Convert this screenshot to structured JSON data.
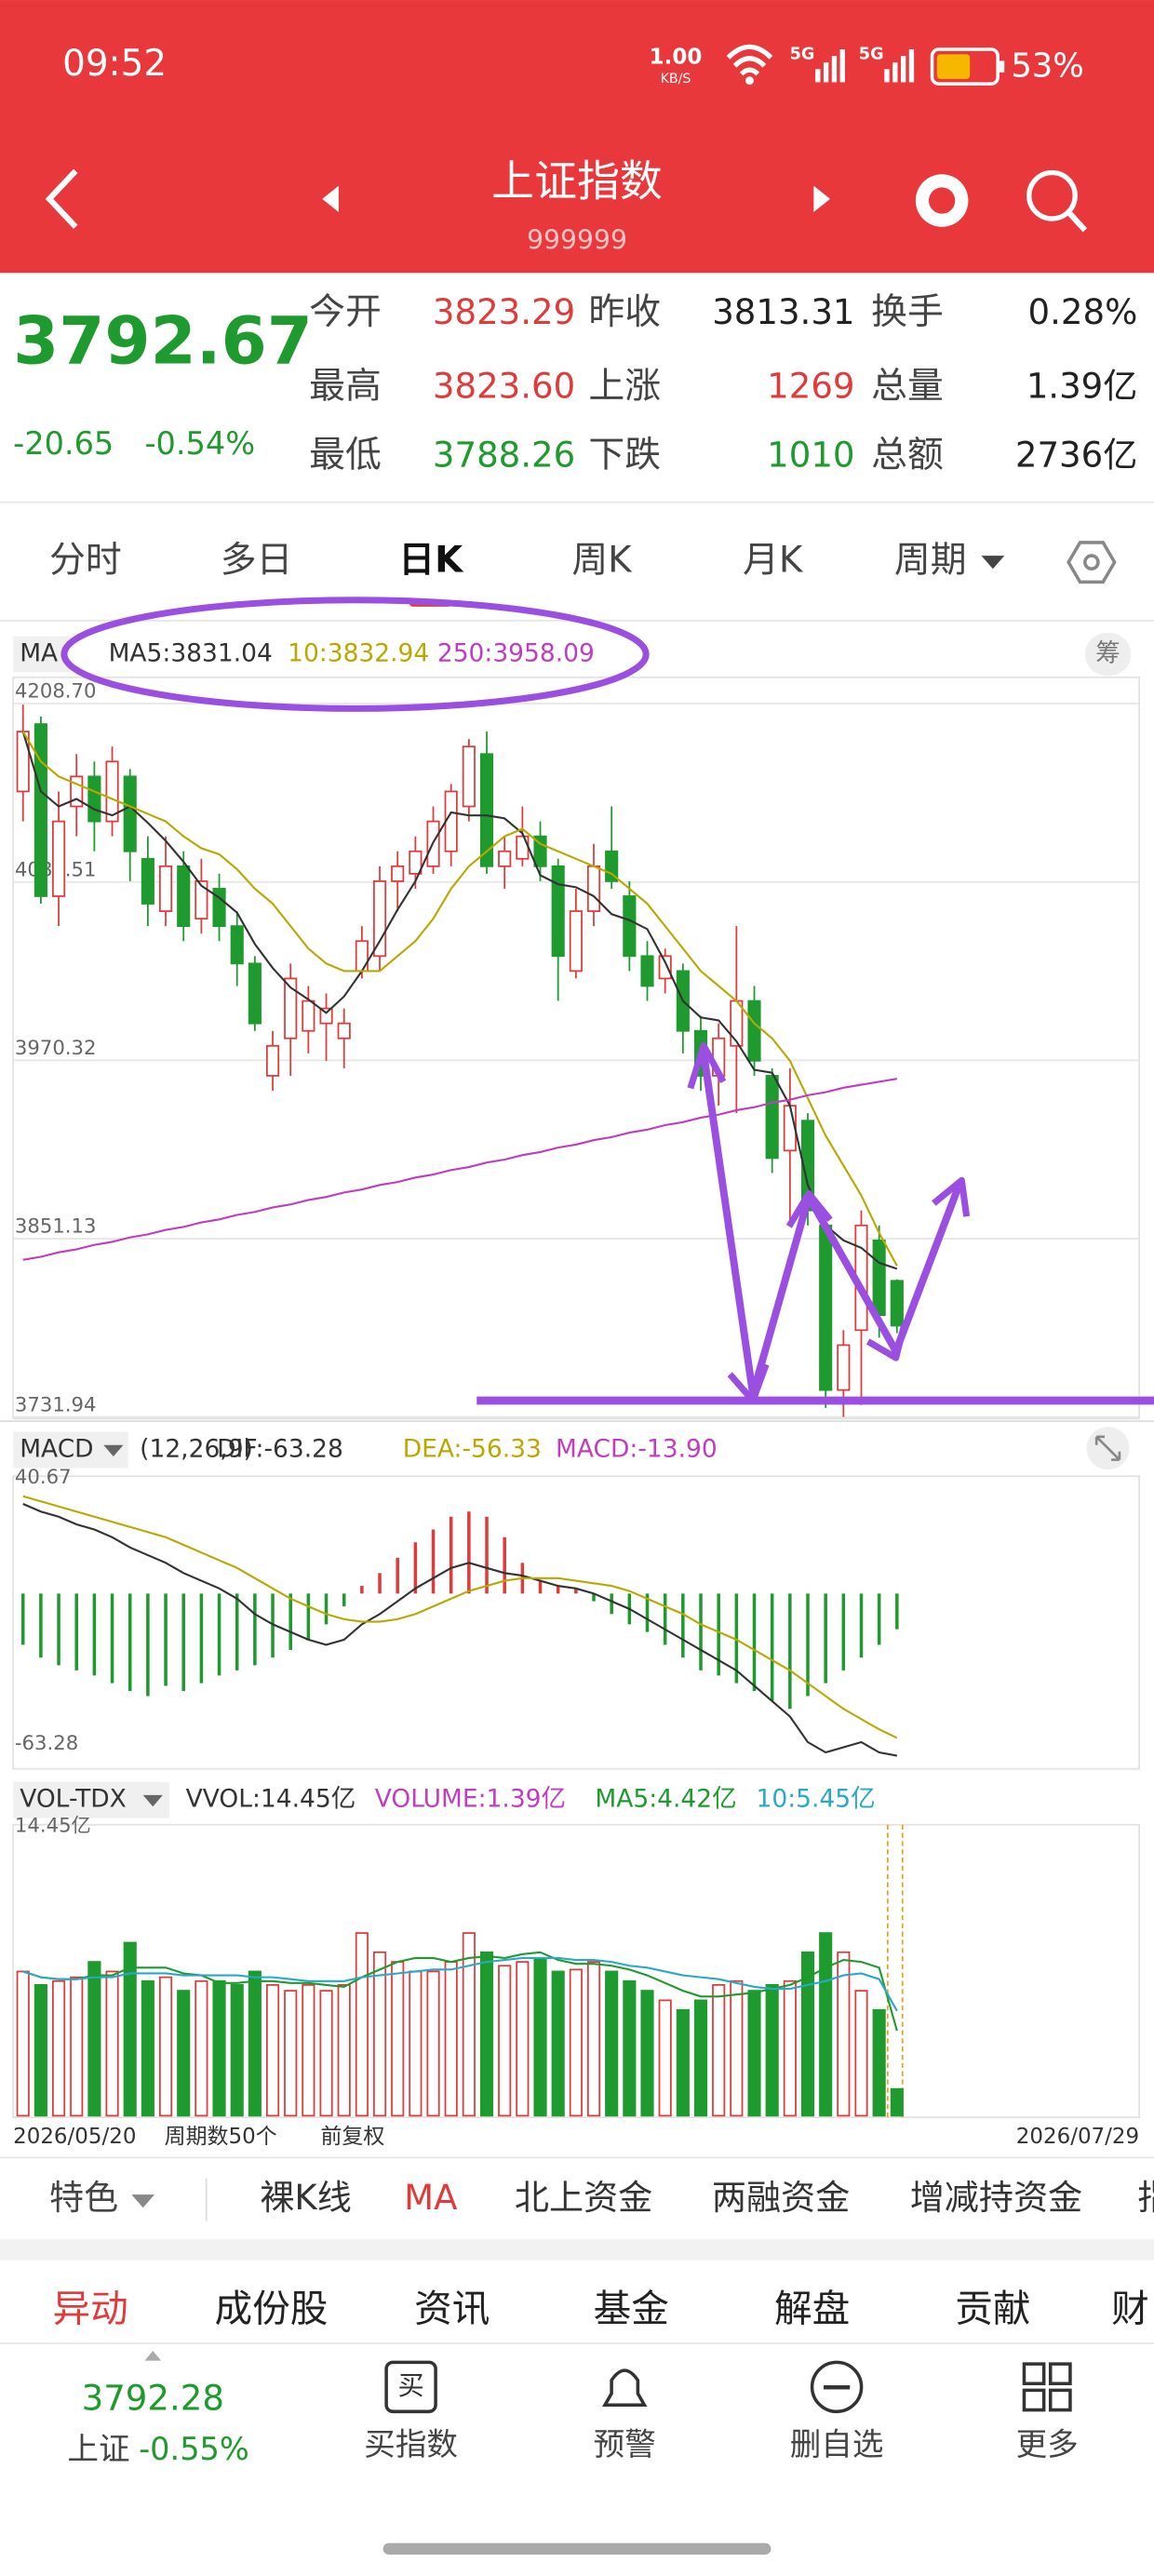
{
  "status_bar": {
    "time": "09:52",
    "net_speed": "1.00",
    "net_unit": "KB/S",
    "network_1": "5G",
    "network_2": "5G",
    "battery": "53%"
  },
  "header": {
    "title": "上证指数",
    "code": "999999"
  },
  "quote": {
    "price": "3792.67",
    "change": "-20.65",
    "change_pct": "-0.54%",
    "rows": [
      [
        {
          "label": "今开",
          "value": "3823.29"
        },
        {
          "label": "昨收",
          "value": "3813.31"
        },
        {
          "label": "换手",
          "value": "0.28%"
        }
      ],
      [
        {
          "label": "最高",
          "value": "3823.60"
        },
        {
          "label": "上涨",
          "value": "1269"
        },
        {
          "label": "总量",
          "value": "1.39亿"
        }
      ],
      [
        {
          "label": "最低",
          "value": "3788.26"
        },
        {
          "label": "下跌",
          "value": "1010"
        },
        {
          "label": "总额",
          "value": "2736亿"
        }
      ]
    ]
  },
  "tabs": [
    "分时",
    "多日",
    "日K",
    "周K",
    "月K",
    "周期"
  ],
  "chart_data": [
    {
      "type": "candlestick",
      "indicator": "MA",
      "chip_button": "筹",
      "up_color": "#e03b3b",
      "down_color": "#1f9a2e",
      "grid": true,
      "ylim": [
        3731.94,
        4208.7
      ],
      "yticks": [
        {
          "value": 4208.7,
          "label": "4208.70"
        },
        {
          "value": 4089.51,
          "label": "4089.51"
        },
        {
          "value": 3970.32,
          "label": "3970.32"
        },
        {
          "value": 3851.13,
          "label": "3851.13"
        },
        {
          "value": 3731.94,
          "label": "3731.94"
        }
      ],
      "open": [
        4150,
        4195,
        4080,
        4140,
        4160,
        4130,
        4160,
        4105,
        4070,
        4100,
        4065,
        4085,
        4060,
        4035,
        3960,
        3985,
        3990,
        3995,
        3985,
        4030,
        4040,
        4090,
        4095,
        4100,
        4110,
        4140,
        4175,
        4100,
        4105,
        4120,
        4100,
        4030,
        4070,
        4110,
        4080,
        4040,
        4025,
        4030,
        3990,
        3960,
        3980,
        4010,
        3960,
        3910,
        3930,
        3860,
        3750,
        3790,
        3850,
        3823
      ],
      "close": [
        4190,
        4080,
        4130,
        4160,
        4130,
        4170,
        4110,
        4075,
        4100,
        4060,
        4090,
        4060,
        4035,
        3995,
        3980,
        4025,
        4010,
        4005,
        3995,
        4050,
        4090,
        4100,
        4110,
        4130,
        4150,
        4180,
        4100,
        4110,
        4120,
        4100,
        4040,
        4070,
        4100,
        4090,
        4040,
        4020,
        4040,
        3990,
        3960,
        3985,
        4010,
        3970,
        3905,
        3940,
        3870,
        3750,
        3780,
        3860,
        3800,
        3793
      ],
      "high": [
        4208,
        4200,
        4150,
        4175,
        4170,
        4180,
        4165,
        4120,
        4120,
        4110,
        4105,
        4095,
        4070,
        4040,
        3990,
        4035,
        4020,
        4015,
        4005,
        4060,
        4100,
        4110,
        4120,
        4140,
        4155,
        4185,
        4190,
        4120,
        4140,
        4130,
        4105,
        4085,
        4115,
        4140,
        4090,
        4050,
        4045,
        4035,
        4000,
        3995,
        4060,
        4020,
        3965,
        3965,
        3935,
        3865,
        3790,
        3870,
        3860,
        3824
      ],
      "low": [
        4130,
        4075,
        4060,
        4120,
        4110,
        4120,
        4090,
        4060,
        4060,
        4050,
        4055,
        4050,
        4020,
        3990,
        3950,
        3960,
        3975,
        3970,
        3965,
        4025,
        4030,
        4070,
        4085,
        4095,
        4100,
        4130,
        4095,
        4085,
        4100,
        4090,
        4010,
        4025,
        4060,
        4085,
        4030,
        4010,
        4015,
        3975,
        3950,
        3940,
        3935,
        3960,
        3895,
        3860,
        3860,
        3738,
        3732,
        3740,
        3785,
        3788
      ],
      "lines": [
        {
          "name": "MA5:3831.04",
          "color": "#333333",
          "values": [
            4190,
            4150,
            4140,
            4145,
            4138,
            4134,
            4140,
            4129,
            4117,
            4103,
            4087,
            4079,
            4069,
            4048,
            4032,
            4019,
            4011,
            4002,
            4013,
            4030,
            4050,
            4071,
            4090,
            4116,
            4136,
            4134,
            4134,
            4132,
            4122,
            4094,
            4088,
            4086,
            4080,
            4068,
            4064,
            4058,
            4036,
            4010,
            3999,
            3997,
            3983,
            3964,
            3962,
            3940,
            3887,
            3860,
            3850,
            3845,
            3835,
            3831
          ]
        },
        {
          "name": "10:3832.94",
          "color": "#b8a800",
          "values": [
            4190,
            4170,
            4160,
            4155,
            4150,
            4145,
            4140,
            4135,
            4130,
            4120,
            4112,
            4108,
            4098,
            4085,
            4075,
            4060,
            4045,
            4035,
            4030,
            4030,
            4030,
            4040,
            4050,
            4065,
            4085,
            4100,
            4110,
            4120,
            4125,
            4115,
            4110,
            4105,
            4100,
            4095,
            4085,
            4075,
            4060,
            4045,
            4030,
            4020,
            4010,
            3995,
            3985,
            3970,
            3945,
            3920,
            3900,
            3880,
            3855,
            3833
          ]
        },
        {
          "name": "250:3958.09",
          "color": "#c03cc0",
          "values": [
            3837,
            3839,
            3842,
            3844,
            3847,
            3849,
            3852,
            3854,
            3857,
            3859,
            3862,
            3864,
            3867,
            3869,
            3872,
            3874,
            3877,
            3879,
            3882,
            3884,
            3887,
            3889,
            3892,
            3894,
            3897,
            3899,
            3902,
            3904,
            3907,
            3909,
            3912,
            3914,
            3917,
            3919,
            3922,
            3924,
            3927,
            3929,
            3932,
            3934,
            3937,
            3939,
            3942,
            3944,
            3947,
            3949,
            3952,
            3954,
            3956,
            3958
          ]
        }
      ]
    },
    {
      "type": "macd",
      "indicator": "MACD",
      "params": "(12,26,9)",
      "up_color": "#e03b3b",
      "down_color": "#1f9a2e",
      "grid": false,
      "ylim": [
        -63.28,
        40.67
      ],
      "yticks": [
        40.67,
        -63.28
      ],
      "series": [
        {
          "name": "DIF:-63.28",
          "color": "#333333",
          "kind": "line",
          "values": [
            35,
            32,
            30,
            27,
            25,
            22,
            18,
            15,
            12,
            8,
            5,
            2,
            -2,
            -8,
            -12,
            -15,
            -18,
            -20,
            -18,
            -12,
            -8,
            -3,
            2,
            6,
            10,
            12,
            10,
            8,
            7,
            5,
            3,
            2,
            0,
            -3,
            -6,
            -10,
            -14,
            -18,
            -22,
            -26,
            -30,
            -36,
            -42,
            -48,
            -58,
            -62,
            -60,
            -58,
            -62,
            -63.28
          ]
        },
        {
          "name": "DEA:-56.33",
          "color": "#b8a800",
          "kind": "line",
          "values": [
            38,
            36,
            34,
            32,
            30,
            28,
            26,
            24,
            22,
            19,
            16,
            13,
            10,
            6,
            2,
            -2,
            -5,
            -8,
            -10,
            -11,
            -11,
            -10,
            -8,
            -5,
            -2,
            1,
            3,
            5,
            6,
            6,
            6,
            5,
            4,
            3,
            1,
            -2,
            -5,
            -8,
            -12,
            -15,
            -18,
            -22,
            -26,
            -30,
            -35,
            -40,
            -45,
            -49,
            -53,
            -56.33
          ]
        },
        {
          "name": "MACD:-13.90",
          "color": "#c03cc0",
          "kind": "bar",
          "values": [
            -20,
            -25,
            -28,
            -30,
            -32,
            -35,
            -38,
            -40,
            -36,
            -38,
            -35,
            -32,
            -30,
            -28,
            -25,
            -22,
            -18,
            -12,
            -5,
            3,
            8,
            14,
            20,
            25,
            30,
            32,
            30,
            22,
            12,
            5,
            3,
            2,
            -3,
            -8,
            -12,
            -15,
            -20,
            -25,
            -30,
            -32,
            -35,
            -38,
            -42,
            -45,
            -40,
            -35,
            -30,
            -25,
            -20,
            -13.9
          ]
        }
      ]
    },
    {
      "type": "volume",
      "indicator": "VOL-TDX",
      "summary": "VVOL:14.45亿",
      "grid": false,
      "ylim": [
        0,
        14.45
      ],
      "yticks": [
        {
          "value": 14.45,
          "label": "14.45亿"
        }
      ],
      "date_range": [
        "2026/05/20",
        "2026/07/29"
      ],
      "period_count": "周期数50个",
      "adjustment": "前复权",
      "series": [
        {
          "name": "VOLUME:1.39亿",
          "color": "#c03cc0",
          "kind": "bar",
          "values": [
            7.5,
            6.8,
            7.0,
            7.2,
            8.0,
            7.5,
            9.0,
            7.0,
            7.2,
            6.5,
            7.0,
            7.0,
            6.8,
            7.5,
            6.8,
            6.5,
            6.8,
            6.5,
            6.8,
            9.5,
            8.5,
            8.0,
            7.5,
            7.5,
            8.0,
            9.5,
            8.5,
            7.8,
            8.0,
            8.2,
            7.5,
            7.6,
            8.0,
            7.5,
            7.0,
            6.5,
            6.0,
            5.5,
            6.0,
            6.8,
            7.0,
            6.5,
            6.8,
            7.0,
            8.5,
            9.5,
            8.5,
            6.5,
            5.5,
            1.39
          ]
        },
        {
          "name": "MA5:4.42亿",
          "color": "#1f9a2e",
          "kind": "line",
          "values": [
            7.5,
            7.2,
            7.1,
            7.1,
            7.3,
            7.3,
            7.7,
            7.7,
            7.7,
            7.4,
            7.3,
            6.9,
            6.9,
            7.0,
            7.0,
            6.9,
            6.9,
            6.8,
            6.7,
            7.2,
            7.6,
            8.0,
            8.2,
            8.2,
            8.0,
            8.2,
            8.3,
            8.2,
            8.4,
            8.5,
            8.1,
            7.9,
            7.9,
            7.8,
            7.6,
            7.3,
            6.9,
            6.5,
            6.2,
            6.2,
            6.3,
            6.4,
            6.6,
            6.8,
            7.2,
            7.7,
            8.1,
            8.0,
            7.7,
            4.42
          ]
        },
        {
          "name": "10:5.45亿",
          "color": "#2aa8c8",
          "kind": "line",
          "values": [
            7.5,
            7.2,
            7.1,
            7.1,
            7.2,
            7.2,
            7.4,
            7.4,
            7.4,
            7.3,
            7.3,
            7.3,
            7.3,
            7.2,
            7.2,
            7.1,
            7.0,
            7.0,
            7.0,
            7.2,
            7.3,
            7.4,
            7.5,
            7.6,
            7.6,
            7.8,
            8.0,
            8.1,
            8.2,
            8.2,
            8.2,
            8.1,
            8.1,
            8.0,
            7.8,
            7.7,
            7.5,
            7.3,
            7.2,
            7.1,
            6.9,
            6.7,
            6.6,
            6.6,
            6.8,
            7.0,
            7.3,
            7.4,
            7.1,
            5.45
          ]
        }
      ]
    }
  ],
  "indicator_tabs": [
    "特色",
    "裸K线",
    "MA",
    "北上资金",
    "两融资金",
    "增减持资金",
    "指"
  ],
  "info_tabs": [
    "异动",
    "成份股",
    "资讯",
    "基金",
    "解盘",
    "贡献",
    "财"
  ],
  "footer": {
    "index_price": "3792.28",
    "index_name": "上证",
    "index_change": "-0.55%",
    "actions": [
      {
        "icon": "买",
        "label": "买指数"
      },
      {
        "label": "预警"
      },
      {
        "label": "删自选"
      },
      {
        "label": "更多"
      }
    ]
  }
}
